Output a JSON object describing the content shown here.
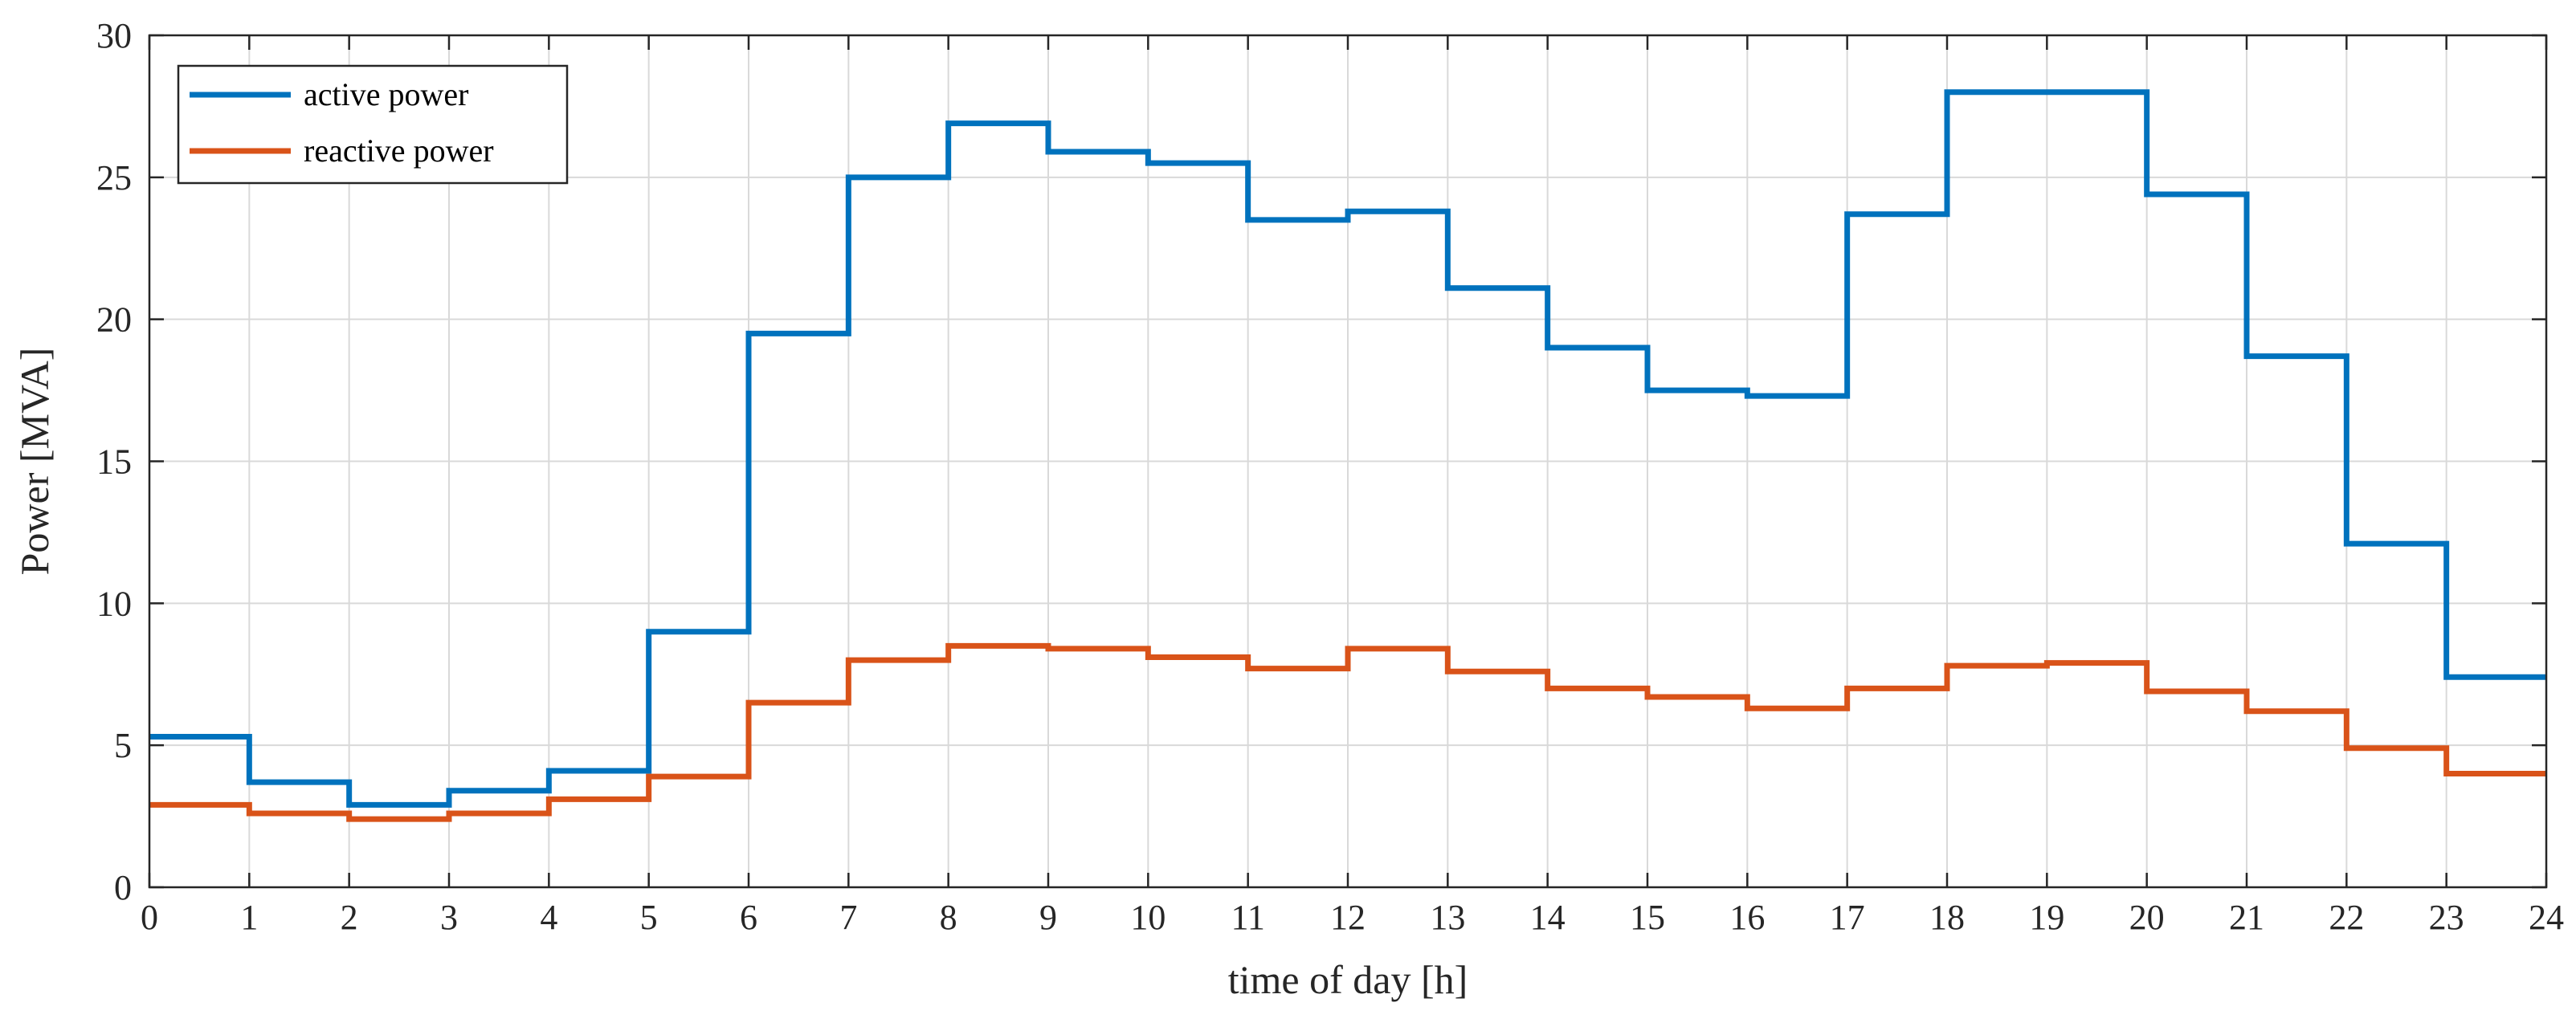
{
  "chart_data": {
    "type": "line",
    "step": "post",
    "xlabel": "time of day [h]",
    "ylabel": "Power [MVA]",
    "xlim": [
      0,
      24
    ],
    "ylim": [
      0,
      30
    ],
    "xticks": [
      0,
      1,
      2,
      3,
      4,
      5,
      6,
      7,
      8,
      9,
      10,
      11,
      12,
      13,
      14,
      15,
      16,
      17,
      18,
      19,
      20,
      21,
      22,
      23,
      24
    ],
    "yticks": [
      0,
      5,
      10,
      15,
      20,
      25,
      30
    ],
    "grid": true,
    "legend_position": "top-left",
    "x": [
      0,
      1,
      2,
      3,
      4,
      5,
      6,
      7,
      8,
      9,
      10,
      11,
      12,
      13,
      14,
      15,
      16,
      17,
      18,
      19,
      20,
      21,
      22,
      23,
      24
    ],
    "series": [
      {
        "name": "active power",
        "color": "#0072BD",
        "values": [
          5.3,
          3.7,
          2.9,
          3.4,
          4.1,
          9.0,
          19.5,
          25.0,
          26.9,
          25.9,
          25.5,
          23.5,
          23.8,
          21.1,
          19.0,
          17.5,
          17.3,
          23.7,
          28.0,
          28.0,
          24.4,
          18.7,
          12.1,
          7.4,
          7.4
        ]
      },
      {
        "name": "reactive power",
        "color": "#D95319",
        "values": [
          2.9,
          2.6,
          2.4,
          2.6,
          3.1,
          3.9,
          6.5,
          8.0,
          8.5,
          8.4,
          8.1,
          7.7,
          8.4,
          7.6,
          7.0,
          6.7,
          6.3,
          7.0,
          7.8,
          7.9,
          6.9,
          6.2,
          4.9,
          4.0,
          4.0
        ]
      }
    ]
  }
}
